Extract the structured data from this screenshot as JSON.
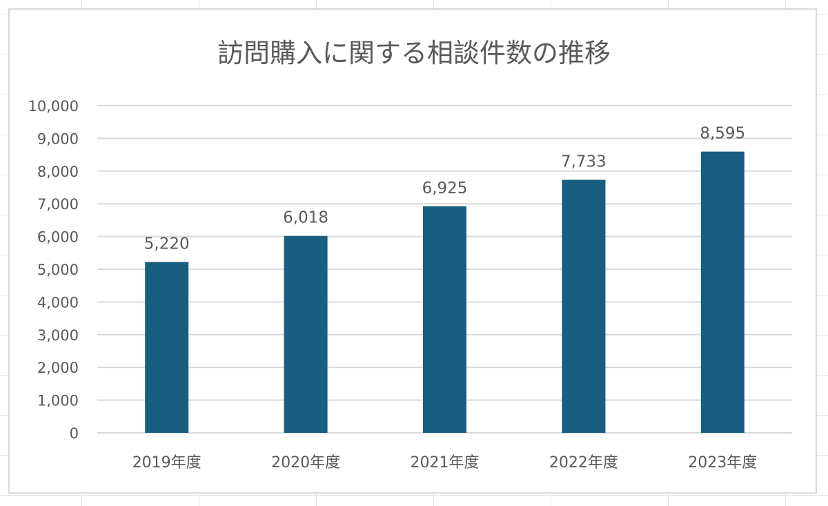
{
  "chart_data": {
    "type": "bar",
    "title": "訪問購入に関する相談件数の推移",
    "categories": [
      "2019年度",
      "2020年度",
      "2021年度",
      "2022年度",
      "2023年度"
    ],
    "values": [
      5220,
      6018,
      6925,
      7733,
      8595
    ],
    "value_labels": [
      "5,220",
      "6,018",
      "6,925",
      "7,733",
      "8,595"
    ],
    "ylim": [
      0,
      10000
    ],
    "yticks": [
      "0",
      "1,000",
      "2,000",
      "3,000",
      "4,000",
      "5,000",
      "6,000",
      "7,000",
      "8,000",
      "9,000",
      "10,000"
    ],
    "xlabel": "",
    "ylabel": "",
    "grid": true,
    "bar_color": "#175e80",
    "grid_color": "#d9d9d9",
    "text_color": "#595959",
    "legend": "none"
  }
}
